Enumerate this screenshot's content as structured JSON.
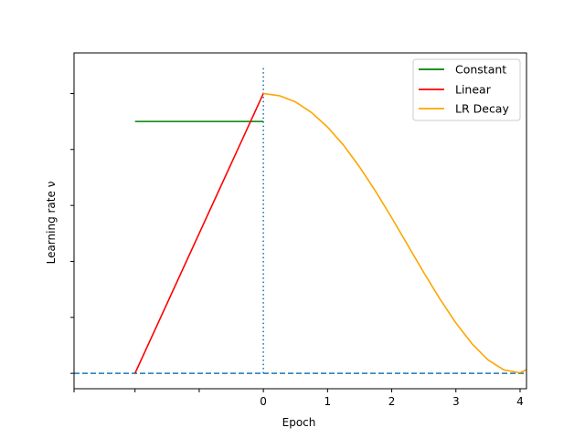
{
  "chart_data": {
    "type": "line",
    "xlabel": "Epoch",
    "ylabel": "Learning rate ν",
    "xlim": [
      -2.95,
      4.1
    ],
    "ylim": [
      -0.055,
      1.145
    ],
    "x_ticks": [
      -2.95,
      -2,
      -1,
      0,
      1,
      2,
      3,
      4
    ],
    "x_tick_labels": [
      "",
      "",
      "",
      "0",
      "1",
      "2",
      "3",
      "4"
    ],
    "y_ticks": [
      0,
      0.2,
      0.4,
      0.6,
      0.8,
      1.0
    ],
    "y_tick_labels": [
      "",
      "",
      "",
      "",
      "",
      ""
    ],
    "grid": false,
    "legend_position": "top-right",
    "series": [
      {
        "name": "Constant",
        "color": "#008000",
        "style": "solid",
        "x": [
          -2,
          0
        ],
        "y": [
          0.9,
          0.9
        ]
      },
      {
        "name": "Linear",
        "color": "#ff0000",
        "style": "solid",
        "x": [
          -2,
          0
        ],
        "y": [
          0,
          1
        ]
      },
      {
        "name": "LR Decay",
        "color": "#ffa500",
        "style": "solid",
        "x": [
          0,
          0.25,
          0.5,
          0.75,
          1.0,
          1.25,
          1.5,
          1.75,
          2.0,
          2.25,
          2.5,
          2.75,
          3.0,
          3.25,
          3.5,
          3.75,
          4.0,
          4.1
        ],
        "y": [
          1.0,
          0.992,
          0.97,
          0.932,
          0.88,
          0.815,
          0.737,
          0.65,
          0.556,
          0.458,
          0.36,
          0.266,
          0.18,
          0.106,
          0.048,
          0.012,
          0.002,
          0.013
        ]
      }
    ],
    "reference_lines": [
      {
        "orientation": "vertical",
        "value": 0,
        "style": "dotted",
        "color": "#1f77b4",
        "y_range": [
          -0.0,
          1.095
        ]
      },
      {
        "orientation": "horizontal",
        "value": 0,
        "style": "dashed",
        "color": "#1f77b4"
      }
    ]
  }
}
